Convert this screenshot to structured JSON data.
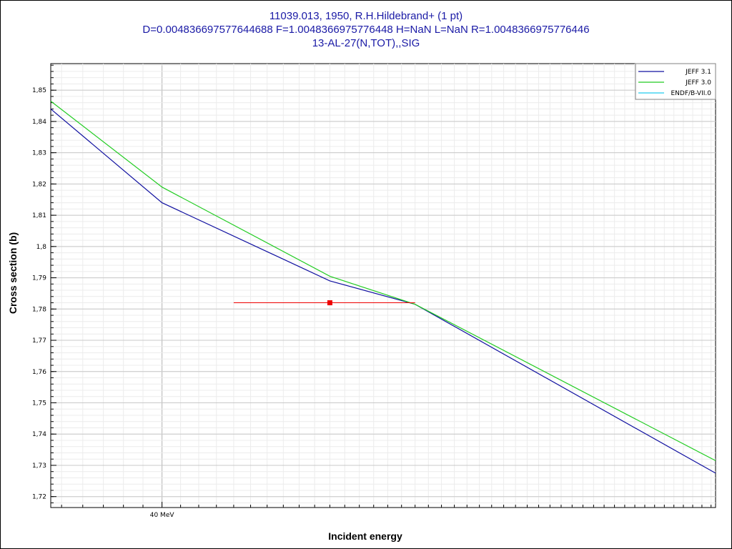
{
  "title": {
    "line1": "11039.013, 1950, R.H.Hildebrand+ (1 pt)",
    "line2": "D=0.004836697577644688 F=1.0048366975776448 H=NaN L=NaN R=1.0048366975776446",
    "line3": "13-AL-27(N,TOT),,SIG"
  },
  "chart_data": {
    "type": "line",
    "xlabel": "Incident energy",
    "ylabel": "Cross section (b)",
    "x_scale": "log",
    "xlim": [
      34.5,
      83.5
    ],
    "ylim": [
      1.7165,
      1.8585
    ],
    "x_tick_labels": [
      {
        "value": 40,
        "label": "40 MeV"
      }
    ],
    "y_ticks": [
      {
        "value": 1.72,
        "label": "1,72"
      },
      {
        "value": 1.73,
        "label": "1,73"
      },
      {
        "value": 1.74,
        "label": "1,74"
      },
      {
        "value": 1.75,
        "label": "1,75"
      },
      {
        "value": 1.76,
        "label": "1,76"
      },
      {
        "value": 1.77,
        "label": "1,77"
      },
      {
        "value": 1.78,
        "label": "1,78"
      },
      {
        "value": 1.79,
        "label": "1,79"
      },
      {
        "value": 1.8,
        "label": "1,8"
      },
      {
        "value": 1.81,
        "label": "1,81"
      },
      {
        "value": 1.82,
        "label": "1,82"
      },
      {
        "value": 1.83,
        "label": "1,83"
      },
      {
        "value": 1.84,
        "label": "1,84"
      },
      {
        "value": 1.85,
        "label": "1,85"
      }
    ],
    "grid": true,
    "legend_position": "top-right",
    "series": [
      {
        "name": "JEFF 3.1",
        "color": "#1010a0",
        "x": [
          34.5,
          40,
          50,
          56,
          83.5
        ],
        "y": [
          1.844,
          1.814,
          1.789,
          1.7815,
          1.7275
        ]
      },
      {
        "name": "JEFF 3.0",
        "color": "#22cc22",
        "x": [
          34.5,
          40,
          50,
          56,
          83.5
        ],
        "y": [
          1.8465,
          1.819,
          1.7905,
          1.7815,
          1.7315
        ]
      },
      {
        "name": "ENDF/B-VII.0",
        "color": "#22ccee",
        "x": [],
        "y": []
      }
    ],
    "experimental": {
      "color": "#ee0000",
      "points": [
        {
          "x": 50,
          "y": 1.782,
          "x_low": 44,
          "x_high": 56
        }
      ]
    }
  }
}
